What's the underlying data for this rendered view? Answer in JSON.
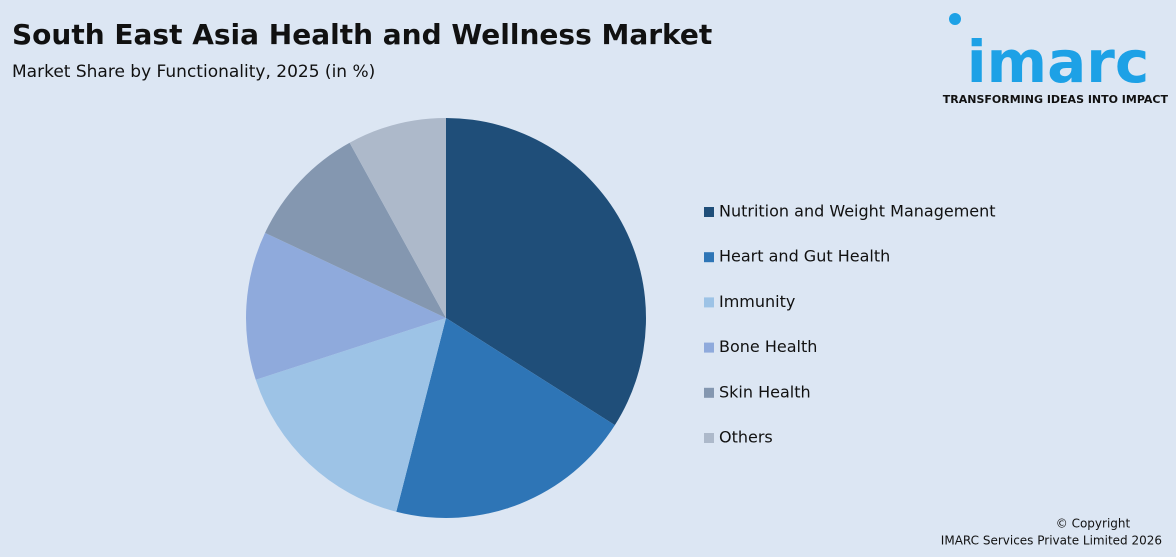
{
  "chart_data": {
    "type": "pie",
    "title": "South East Asia Health and Wellness Market",
    "subtitle": "Market Share by Functionality, 2025 (in %)",
    "categories": [
      "Nutrition and Weight Management",
      "Heart and Gut Health",
      "Immunity",
      "Bone Health",
      "Skin Health",
      "Others"
    ],
    "values": [
      34,
      20,
      16,
      12,
      10,
      8
    ],
    "colors": [
      "#1f4e79",
      "#2e75b6",
      "#9dc3e6",
      "#8faadc",
      "#8497b0",
      "#adb9ca"
    ],
    "legend": "right"
  },
  "logo": {
    "name": "imarc",
    "tagline": "TRANSFORMING IDEAS INTO IMPACT"
  },
  "copyright": [
    "© Copyright",
    "IMARC Services Private Limited 2026"
  ]
}
